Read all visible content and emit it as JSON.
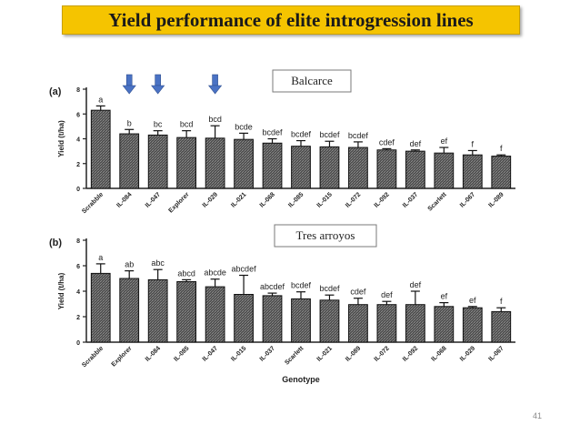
{
  "slide": {
    "title": "Yield performance of elite introgression lines",
    "page_number": "41"
  },
  "arrow_color": "#4a72c4",
  "chart_data": [
    {
      "type": "bar",
      "panel_label": "(a)",
      "title": "Balcarce",
      "ylabel": "Yield (t/ha)",
      "xlabel": "",
      "ylim": [
        0,
        8
      ],
      "yticks": [
        0,
        2,
        4,
        6,
        8
      ],
      "grid": false,
      "categories": [
        "Scrabble",
        "IL-084",
        "IL-047",
        "Explorer",
        "IL-029",
        "IL-021",
        "IL-068",
        "IL-085",
        "IL-015",
        "IL-072",
        "IL-092",
        "IL-037",
        "Scarlett",
        "IL-067",
        "IL-089"
      ],
      "values": [
        6.3,
        4.4,
        4.3,
        4.1,
        4.05,
        3.95,
        3.65,
        3.4,
        3.35,
        3.3,
        3.1,
        3.0,
        2.85,
        2.7,
        2.6
      ],
      "errors": [
        0.35,
        0.35,
        0.35,
        0.55,
        1.0,
        0.5,
        0.35,
        0.45,
        0.45,
        0.45,
        0.1,
        0.1,
        0.45,
        0.35,
        0.1
      ],
      "letters": [
        "a",
        "b",
        "bc",
        "bcd",
        "bcd",
        "bcde",
        "bcdef",
        "bcdef",
        "bcdef",
        "bcdef",
        "cdef",
        "def",
        "ef",
        "f",
        "f"
      ],
      "highlighted": [
        "IL-084",
        "IL-047",
        "IL-029"
      ]
    },
    {
      "type": "bar",
      "panel_label": "(b)",
      "title": "Tres arroyos",
      "ylabel": "Yield (t/ha)",
      "xlabel": "Genotype",
      "ylim": [
        0,
        8
      ],
      "yticks": [
        0,
        2,
        4,
        6,
        8
      ],
      "grid": false,
      "categories": [
        "Scrabble",
        "Explorer",
        "IL-084",
        "IL-085",
        "IL-047",
        "IL-015",
        "IL-037",
        "Scarlett",
        "IL-021",
        "IL-089",
        "IL-072",
        "IL-092",
        "IL-068",
        "IL-029",
        "IL-067"
      ],
      "values": [
        5.4,
        5.0,
        4.9,
        4.75,
        4.35,
        3.75,
        3.65,
        3.4,
        3.3,
        2.95,
        2.95,
        2.95,
        2.8,
        2.7,
        2.4
      ],
      "errors": [
        0.75,
        0.6,
        0.8,
        0.15,
        0.6,
        1.5,
        0.2,
        0.55,
        0.4,
        0.5,
        0.25,
        1.05,
        0.3,
        0.1,
        0.3
      ],
      "letters": [
        "a",
        "ab",
        "abc",
        "abcd",
        "abcde",
        "abcdef",
        "abcdef",
        "bcdef",
        "bcdef",
        "cdef",
        "def",
        "def",
        "ef",
        "ef",
        "f"
      ]
    }
  ]
}
